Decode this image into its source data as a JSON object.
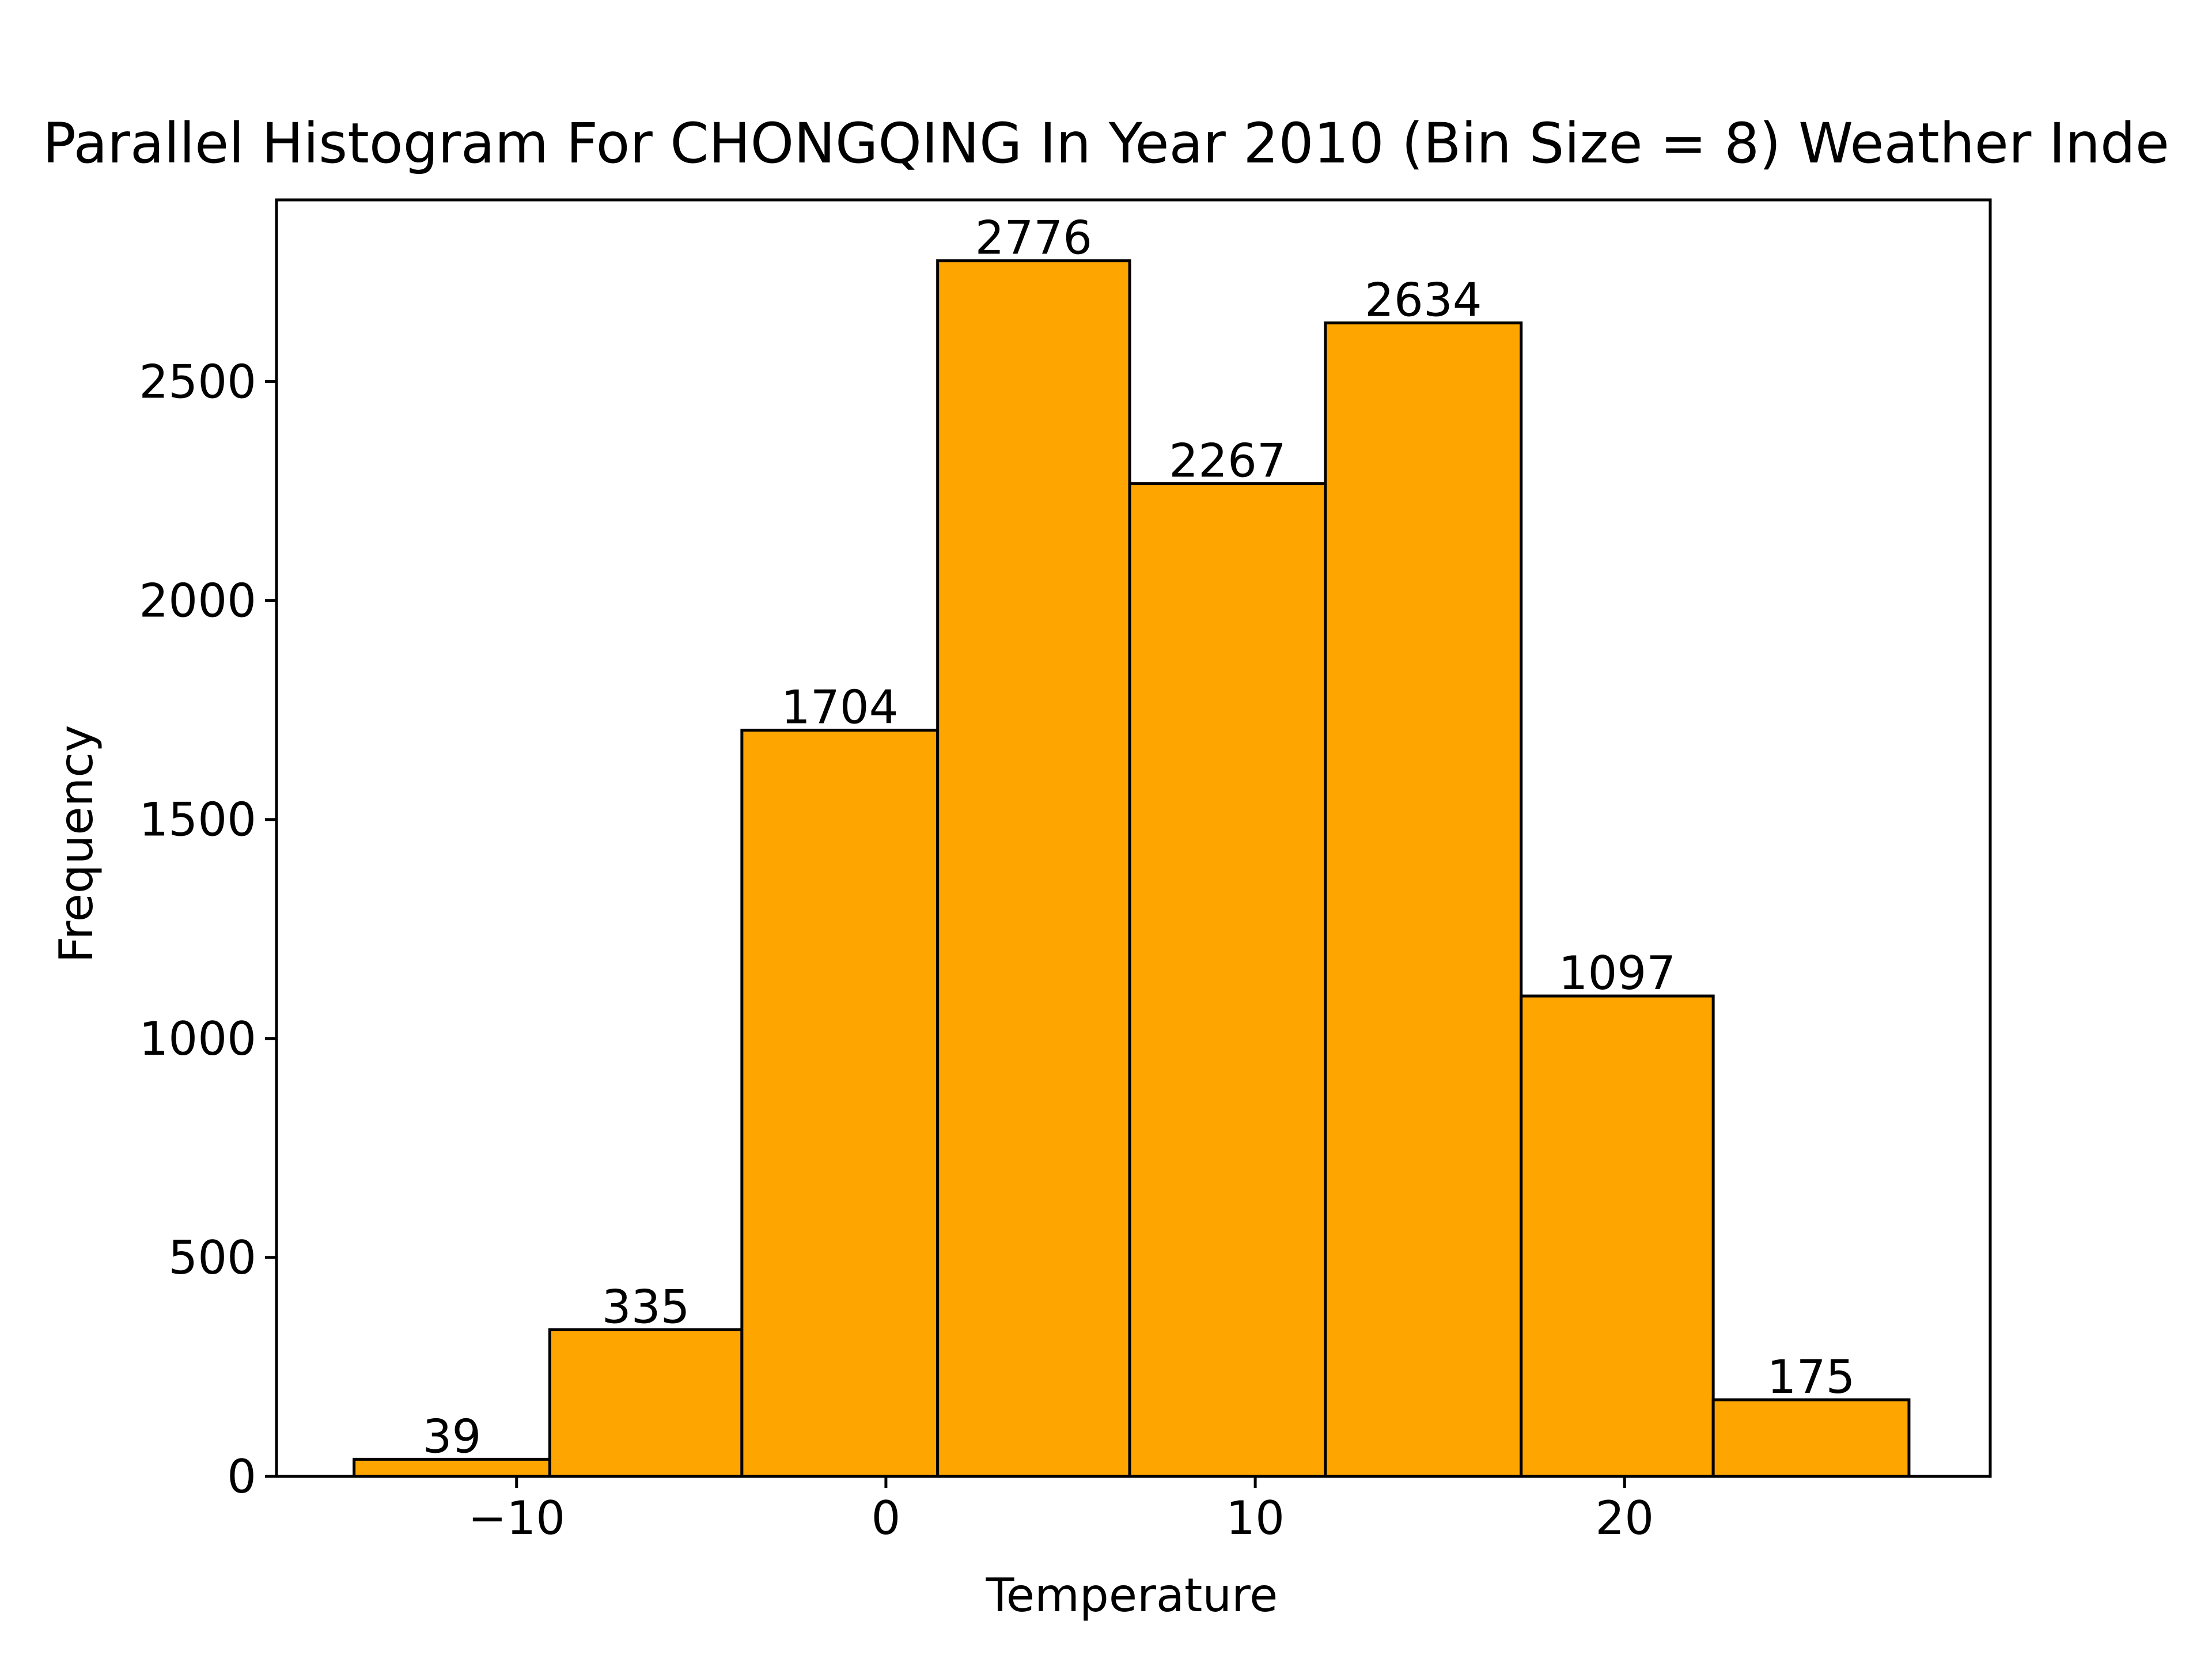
{
  "chart_data": {
    "type": "bar",
    "title": "Parallel Histogram For CHONGQING In Year 2010 (Bin Size = 8) Weather Inde",
    "xlabel": "Temperature",
    "ylabel": "Frequency",
    "bins": [
      {
        "start": -14.4,
        "end": -9.1,
        "value": 39,
        "label": "39"
      },
      {
        "start": -9.1,
        "end": -3.9,
        "value": 335,
        "label": "335"
      },
      {
        "start": -3.9,
        "end": 1.4,
        "value": 1704,
        "label": "1704"
      },
      {
        "start": 1.4,
        "end": 6.6,
        "value": 2776,
        "label": "2776"
      },
      {
        "start": 6.6,
        "end": 11.9,
        "value": 2267,
        "label": "2267"
      },
      {
        "start": 11.9,
        "end": 17.2,
        "value": 2634,
        "label": "2634"
      },
      {
        "start": 17.2,
        "end": 22.4,
        "value": 1097,
        "label": "1097"
      },
      {
        "start": 22.4,
        "end": 27.7,
        "value": 175,
        "label": "175"
      }
    ],
    "xlim": [
      -16.5,
      29.9
    ],
    "ylim": [
      0,
      2915
    ],
    "xticks": [
      {
        "value": -10,
        "label": "−10"
      },
      {
        "value": 0,
        "label": "0"
      },
      {
        "value": 10,
        "label": "10"
      },
      {
        "value": 20,
        "label": "20"
      }
    ],
    "yticks": [
      {
        "value": 0,
        "label": "0"
      },
      {
        "value": 500,
        "label": "500"
      },
      {
        "value": 1000,
        "label": "1000"
      },
      {
        "value": 1500,
        "label": "1500"
      },
      {
        "value": 2000,
        "label": "2000"
      },
      {
        "value": 2500,
        "label": "2500"
      }
    ],
    "bar_color": "#FFA500",
    "edge_color": "#000000",
    "grid": false,
    "legend": "none"
  }
}
